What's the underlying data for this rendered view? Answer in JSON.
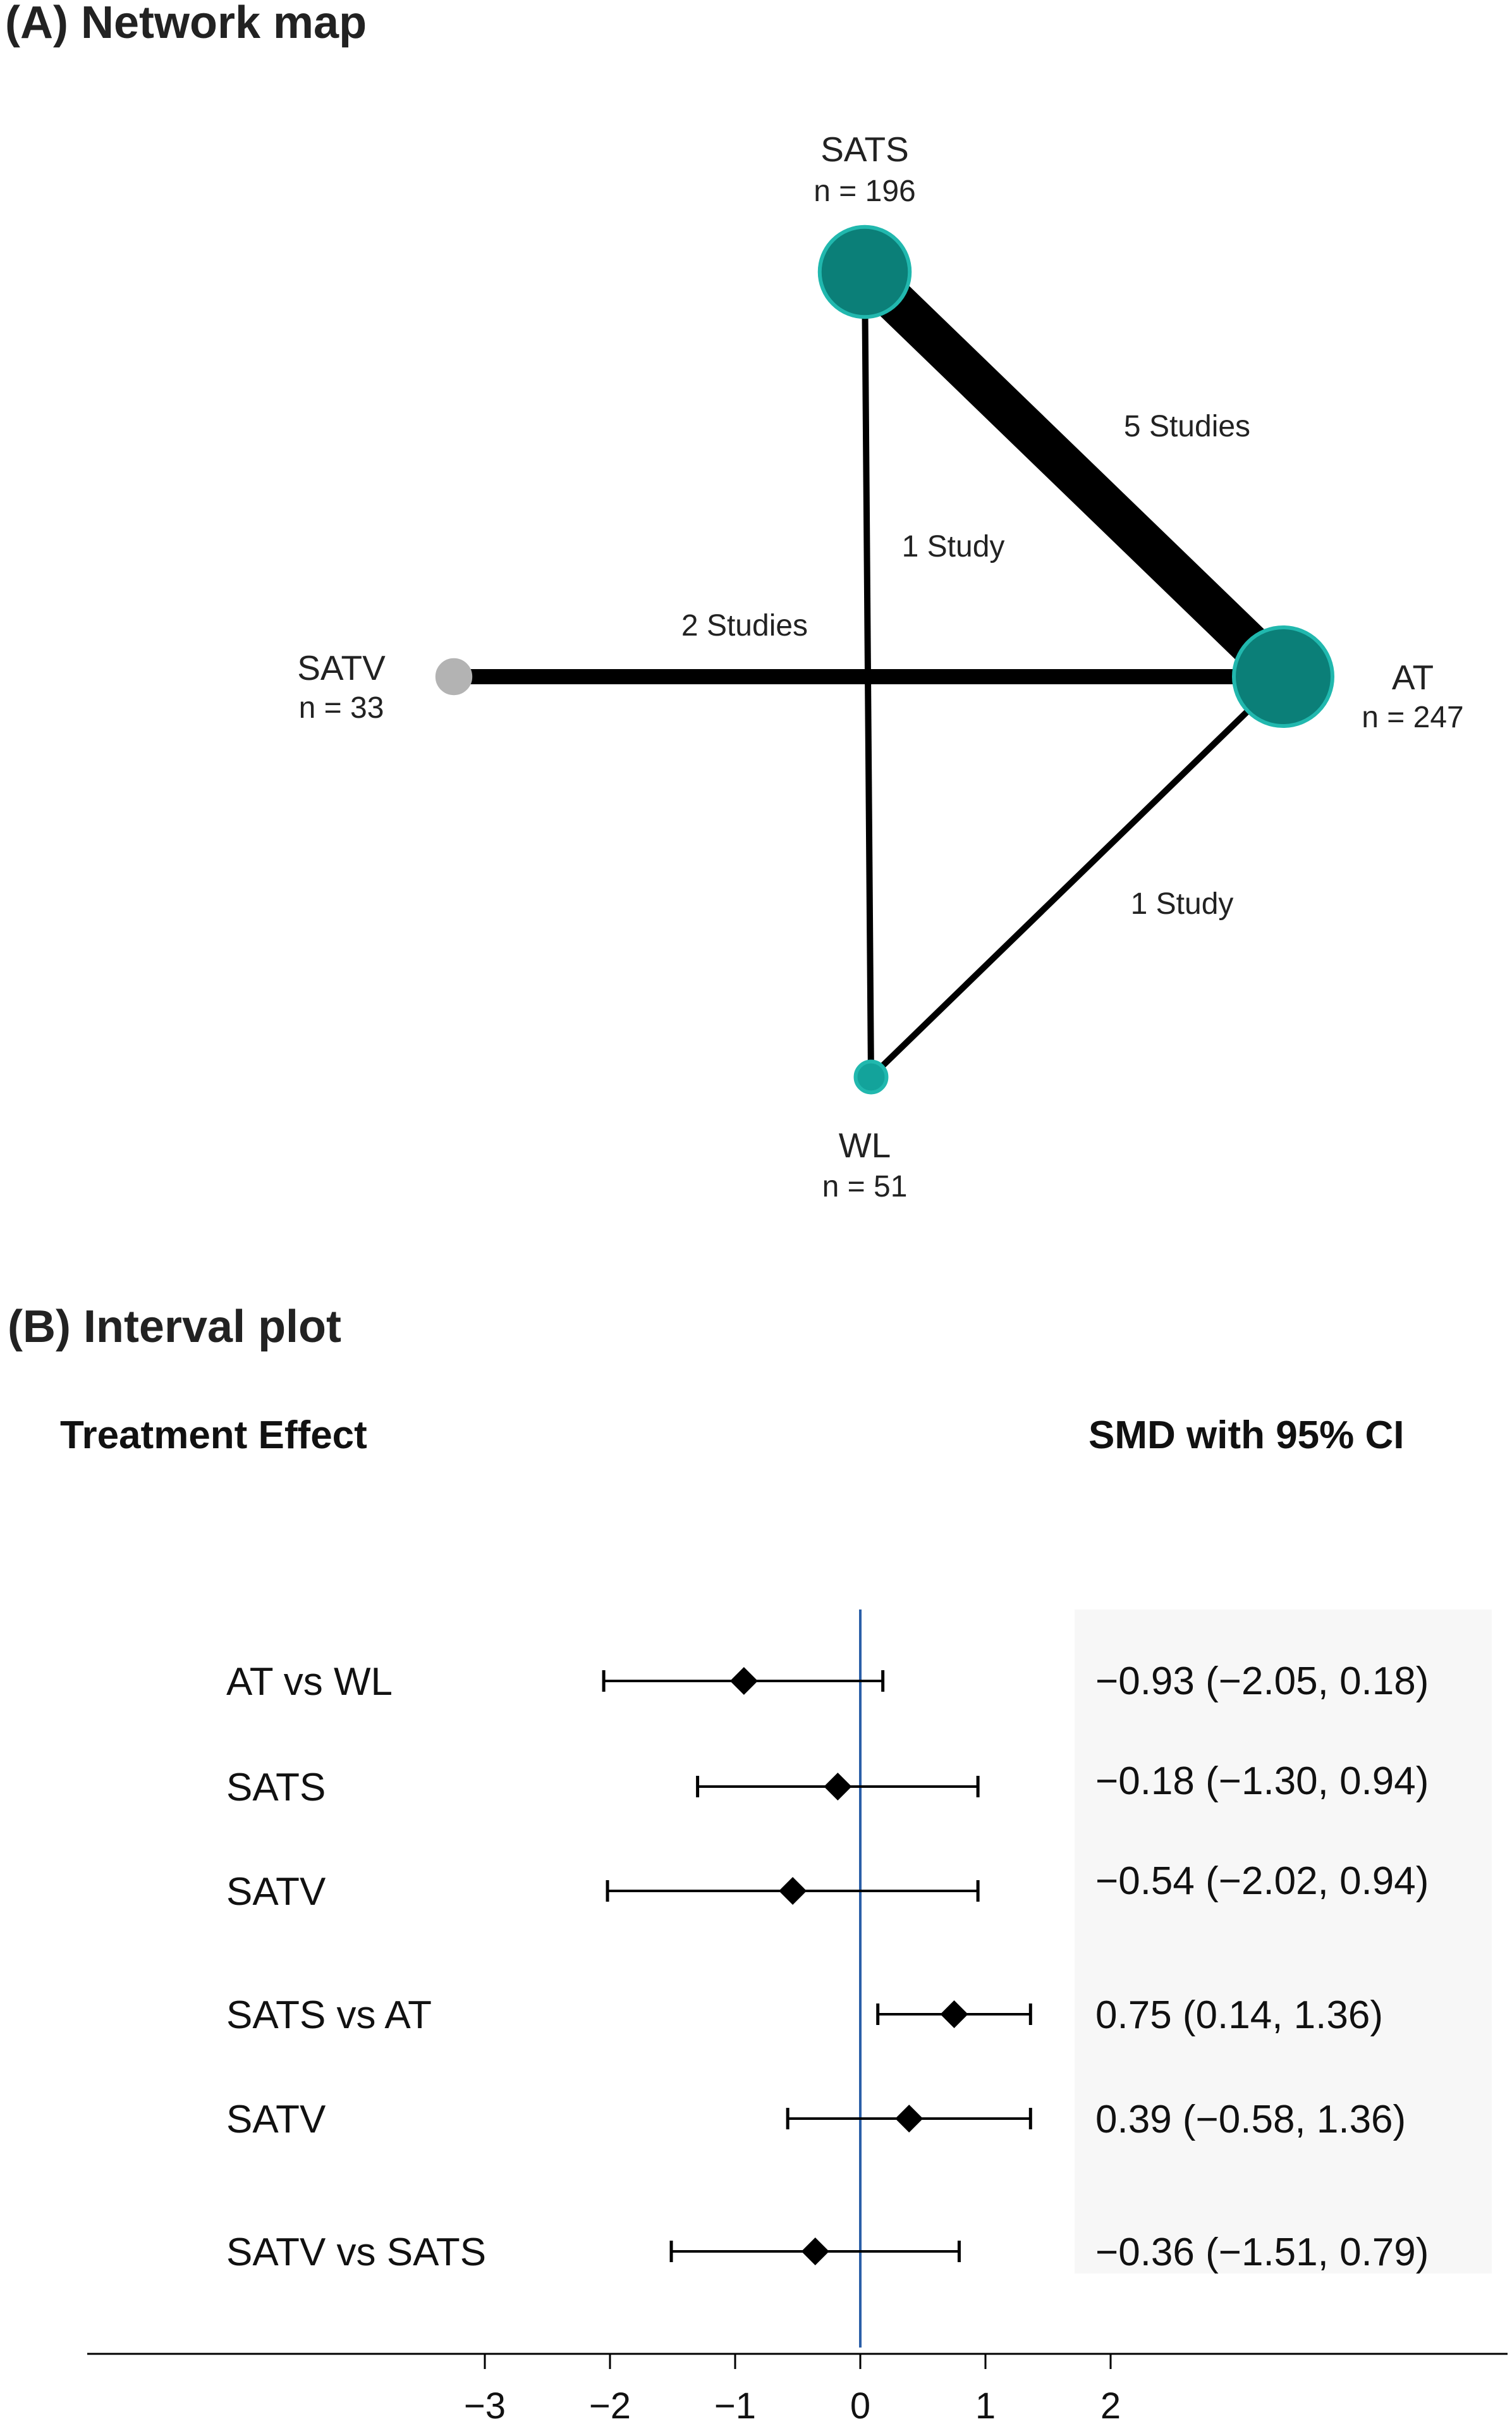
{
  "panel_a": {
    "title": "(A) Network map",
    "nodes": [
      {
        "id": "SATS",
        "label": "SATS",
        "n_text": "n = 196",
        "n": 196,
        "color": "#0b7f78"
      },
      {
        "id": "AT",
        "label": "AT",
        "n_text": "n = 247",
        "n": 247,
        "color": "#0b7f78"
      },
      {
        "id": "SATV",
        "label": "SATV",
        "n_text": "n = 33",
        "n": 33,
        "color": "#b3b3b3"
      },
      {
        "id": "WL",
        "label": "WL",
        "n_text": "n = 51",
        "n": 51,
        "color": "#13a39b"
      }
    ],
    "edges": [
      {
        "from": "SATS",
        "to": "AT",
        "studies": 5,
        "label": "5 Studies"
      },
      {
        "from": "SATS",
        "to": "WL",
        "studies": 1,
        "label": "1 Study"
      },
      {
        "from": "SATV",
        "to": "AT",
        "studies": 2,
        "label": "2 Studies"
      },
      {
        "from": "WL",
        "to": "AT",
        "studies": 1,
        "label": "1 Study"
      }
    ]
  },
  "panel_b": {
    "title": "(B) Interval plot",
    "left_header": "Treatment Effect",
    "right_header": "SMD with 95% CI",
    "reference_line_color": "#2b5fa8"
  },
  "chart_data": {
    "type": "interval",
    "title": "(B) Interval plot",
    "xlim": [
      -3.5,
      5.2
    ],
    "x_ticks": [
      -3,
      -2,
      -1,
      0,
      1,
      2
    ],
    "x_tick_labels": [
      "−3",
      "−2",
      "−1",
      "0",
      "1",
      "2"
    ],
    "reference_value": 0,
    "rows": [
      {
        "label": "AT vs WL",
        "estimate": -0.93,
        "lower": -2.05,
        "upper": 0.18,
        "ci_text": "−0.93 (−2.05, 0.18)"
      },
      {
        "label": "SATS",
        "estimate": -0.18,
        "lower": -1.3,
        "upper": 0.94,
        "ci_text": "−0.18 (−1.30, 0.94)"
      },
      {
        "label": "SATV",
        "estimate": -0.54,
        "lower": -2.02,
        "upper": 0.94,
        "ci_text": "−0.54 (−2.02, 0.94)"
      },
      {
        "label": "SATS vs AT",
        "estimate": 0.75,
        "lower": 0.14,
        "upper": 1.36,
        "ci_text": "0.75 (0.14, 1.36)"
      },
      {
        "label": "SATV",
        "estimate": 0.39,
        "lower": -0.58,
        "upper": 1.36,
        "ci_text": "0.39 (−0.58, 1.36)"
      },
      {
        "label": "SATV vs SATS",
        "estimate": -0.36,
        "lower": -1.51,
        "upper": 0.79,
        "ci_text": "−0.36 (−1.51, 0.79)"
      }
    ]
  }
}
